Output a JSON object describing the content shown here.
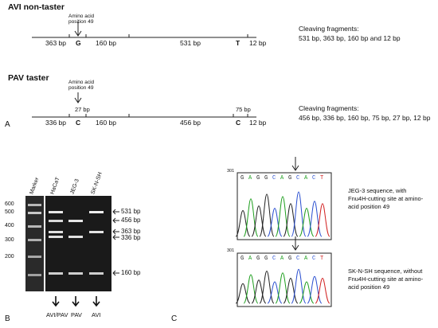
{
  "panel_a": {
    "label": "A",
    "avi": {
      "title": "AVI  non-taster",
      "marker_label": "Amino acid\nposition 49",
      "segments": [
        "363 bp",
        "160 bp",
        "531 bp",
        "12 bp"
      ],
      "sites": [
        "G",
        "T"
      ],
      "fragments_title": "Cleaving fragments:",
      "fragments": "531 bp, 363 bp, 160 bp and 12 bp"
    },
    "pav": {
      "title": "PAV taster",
      "marker_label": "Amino acid\nposition 49",
      "segments": [
        "336 bp",
        "27 bp",
        "160 bp",
        "456 bp",
        "75 bp",
        "12 bp"
      ],
      "sites": [
        "C",
        "C"
      ],
      "fragments_title": "Cleaving fragments:",
      "fragments": "456 bp, 336 bp, 160 bp, 75 bp, 27 bp, 12 bp"
    }
  },
  "panel_b": {
    "label": "B",
    "lanes": [
      "Marker",
      "HaCaT",
      "JEG-3",
      "SK-N-SH"
    ],
    "ladder": [
      "600",
      "500",
      "400",
      "300",
      "200"
    ],
    "band_labels": [
      "531 bp",
      "456 bp",
      "363 bp",
      "336 bp",
      "160 bp"
    ],
    "genotypes": [
      "AVI/PAV",
      "PAV",
      "AVI"
    ]
  },
  "panel_c": {
    "label": "C",
    "trace1": {
      "position": "301",
      "sequence": [
        "G",
        "A",
        "G",
        "G",
        "C",
        "A",
        "G",
        "C",
        "A",
        "C",
        "T"
      ],
      "caption": "JEG-3 sequence, with\nFnu4H-cutting site at amino-\nacid position 49"
    },
    "trace2": {
      "position": "301",
      "sequence": [
        "G",
        "A",
        "G",
        "G",
        "C",
        "A",
        "G",
        "C",
        "A",
        "C",
        "T"
      ],
      "caption": "SK-N-SH sequence, without\nFnu4H-cutting site at amino-\nacid position 49"
    }
  }
}
